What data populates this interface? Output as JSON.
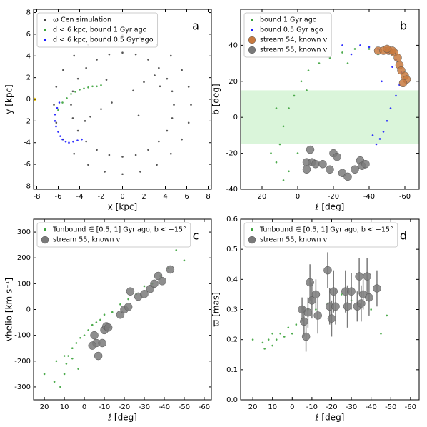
{
  "chart_data": [
    {
      "type": "scatter",
      "panel_label": "a",
      "xlabel": "x [kpc]",
      "ylabel": "y [kpc]",
      "xlim": [
        -8.3,
        8.3
      ],
      "ylim": [
        -8.3,
        8.3
      ],
      "xticks": [
        -8,
        -6,
        -4,
        -2,
        0,
        2,
        4,
        6,
        8
      ],
      "yticks": [
        -8,
        -6,
        -4,
        -2,
        0,
        2,
        4,
        6,
        8
      ],
      "legend": "upper left",
      "series": [
        {
          "name": "ω Cen simulation",
          "color": "#444444",
          "marker": "small",
          "x": [
            4.8,
            4.64,
            4.16,
            3.39,
            2.4,
            1.24,
            0,
            -1.24,
            -2.4,
            -3.39,
            -4.16,
            -4.64,
            -4.8,
            -4.64,
            -4.16,
            -3.39,
            -2.4,
            -1.24,
            0,
            1.24,
            2.4,
            3.39,
            4.16,
            4.64,
            6.4,
            6.18,
            5.54,
            4.52,
            3.2,
            1.66,
            0,
            -1.66,
            -3.2,
            -4.52,
            -5.54,
            -6.18,
            -6.4,
            -6.18,
            -5.54,
            -4.52,
            -3.2,
            -1.66,
            0,
            1.66,
            3.2,
            4.52,
            5.54,
            6.18,
            -3,
            -2,
            -1,
            1,
            2,
            3,
            -3.5,
            3.5,
            1.5,
            -1.5
          ],
          "y": [
            -0.5,
            0.74,
            1.9,
            2.89,
            3.66,
            4.14,
            4.3,
            4.14,
            3.66,
            2.89,
            1.9,
            0.74,
            -0.5,
            -1.74,
            -2.9,
            -3.89,
            -4.66,
            -5.14,
            -5.3,
            -5.14,
            -4.66,
            -3.89,
            -2.9,
            -1.74,
            -0.5,
            1.16,
            2.7,
            4.02,
            5.04,
            5.68,
            5.9,
            5.68,
            5.04,
            4.02,
            2.7,
            1.16,
            -0.5,
            -2.16,
            -3.7,
            -5.02,
            -6.04,
            -6.68,
            -6.9,
            -6.68,
            -6.04,
            -5.02,
            -3.7,
            -2.16,
            -1.6,
            -0.9,
            -0.3,
            0.8,
            1.6,
            2.2,
            -2.0,
            1.2,
            -1.5,
            1.8
          ]
        },
        {
          "name": "d < 6 kpc, bound 1 Gyr ago",
          "color": "#3aa23a",
          "marker": "small",
          "x": [
            -6.0,
            -5.6,
            -5.2,
            -4.8,
            -4.4,
            -4.0,
            -3.6,
            -3.2,
            -2.8,
            -2.4,
            -2.0
          ],
          "y": [
            -1.0,
            -0.3,
            0.1,
            0.5,
            0.7,
            0.9,
            1.0,
            1.1,
            1.2,
            1.2,
            1.3
          ]
        },
        {
          "name": "d < 6 kpc, bound 0.5 Gyr ago",
          "color": "#1a1aff",
          "marker": "small",
          "x": [
            -6.3,
            -6.3,
            -6.2,
            -6.0,
            -5.8,
            -5.6,
            -5.3,
            -5.0,
            -4.6,
            -4.2,
            -3.8,
            -6.1,
            -5.9
          ],
          "y": [
            -1.4,
            -2.0,
            -2.5,
            -3.0,
            -3.4,
            -3.7,
            -3.9,
            -4.0,
            -3.9,
            -3.8,
            -3.7,
            -0.8,
            -0.3
          ]
        },
        {
          "color": "#e8c000",
          "marker": "small",
          "x": [
            -8.2
          ],
          "y": [
            0
          ]
        }
      ]
    },
    {
      "type": "scatter",
      "panel_label": "b",
      "xlabel": "ℓ [deg]",
      "ylabel": "b [deg]",
      "xlim": [
        32,
        -68
      ],
      "ylim": [
        -40,
        60
      ],
      "xticks": [
        20,
        0,
        -20,
        -40,
        -60
      ],
      "yticks": [
        -40,
        -20,
        0,
        20,
        40
      ],
      "yband": [
        -15,
        15
      ],
      "band_color": "#daf5da",
      "legend": "upper left",
      "series": [
        {
          "name": "bound 1 Gyr ago",
          "color": "#3aa23a",
          "marker": "small",
          "x": [
            12,
            10,
            8,
            5,
            2,
            -2,
            -6,
            -12,
            -18,
            -25,
            -32,
            -40,
            5,
            15,
            -5,
            -28,
            -45,
            0,
            8,
            12
          ],
          "y": [
            -25,
            -15,
            -5,
            5,
            12,
            20,
            26,
            30,
            33,
            36,
            38,
            38,
            -30,
            -20,
            15,
            30,
            35,
            -20,
            -35,
            5
          ]
        },
        {
          "name": "bound 0.5 Gyr ago",
          "color": "#1a1aff",
          "marker": "small",
          "x": [
            -35,
            -40,
            -45,
            -50,
            -55,
            -58,
            -57,
            -55,
            -52,
            -50,
            -48,
            -46,
            -44,
            -60,
            -53,
            -42,
            -30,
            -25,
            -47
          ],
          "y": [
            40,
            39,
            38,
            36,
            32,
            25,
            18,
            12,
            5,
            -2,
            -8,
            -12,
            -15,
            20,
            28,
            -10,
            35,
            40,
            20
          ]
        },
        {
          "name": "stream 54, known v",
          "color": "#c87a40",
          "marker": "large",
          "x": [
            -45,
            -48,
            -51,
            -54,
            -56,
            -57,
            -58,
            -60,
            -61,
            -59,
            -53,
            -50
          ],
          "y": [
            37,
            37,
            37,
            36,
            33,
            29,
            26,
            23,
            21,
            19,
            37,
            38
          ]
        },
        {
          "name": "stream 55, known v",
          "color": "#7a7a7a",
          "marker": "large",
          "x": [
            -7,
            -5,
            -8,
            -10,
            -5,
            -20,
            -22,
            -18,
            -25,
            -28,
            -32,
            -35,
            -36,
            -38,
            -14
          ],
          "y": [
            -18,
            -25,
            -25,
            -26,
            -29,
            -20,
            -22,
            -29,
            -31,
            -33,
            -29,
            -24,
            -27,
            -26,
            -26
          ]
        }
      ]
    },
    {
      "type": "scatter",
      "panel_label": "c",
      "xlabel": "ℓ [deg]",
      "ylabel": "vhelio [km s⁻¹]",
      "xlim": [
        25.4,
        -63.6
      ],
      "ylim": [
        -350,
        350
      ],
      "xticks": [
        20,
        10,
        0,
        -10,
        -20,
        -30,
        -40,
        -50,
        -60
      ],
      "yticks": [
        -300,
        -200,
        -100,
        0,
        100,
        200,
        300
      ],
      "legend": "upper left",
      "series": [
        {
          "name": "Tunbound ∈ [0.5, 1] Gyr ago, b < −15°",
          "color": "#3aa23a",
          "marker": "small",
          "x": [
            20,
            15,
            12,
            10,
            9,
            8,
            6,
            4,
            2,
            0,
            -2,
            -4,
            -6,
            -8,
            -10,
            -14,
            -18,
            -22,
            -26,
            -30,
            -34,
            -38,
            -42,
            -46,
            -50,
            10,
            14,
            6,
            3,
            -12
          ],
          "y": [
            -250,
            -280,
            -300,
            -250,
            -210,
            -180,
            -150,
            -130,
            -110,
            -100,
            -80,
            -60,
            -50,
            -40,
            -20,
            -10,
            20,
            40,
            60,
            90,
            100,
            130,
            160,
            230,
            190,
            -180,
            -200,
            -190,
            -230,
            -70
          ]
        },
        {
          "name": "stream 55, known v",
          "color": "#7a7a7a",
          "marker": "large",
          "x": [
            -5,
            -6,
            -7,
            -9,
            -10,
            -11,
            -12,
            -18,
            -20,
            -22,
            -23,
            -27,
            -30,
            -33,
            -35,
            -37,
            -39,
            -43,
            -4
          ],
          "y": [
            -100,
            -130,
            -180,
            -130,
            -80,
            -65,
            -70,
            -20,
            0,
            10,
            70,
            50,
            60,
            80,
            100,
            130,
            110,
            155,
            -140
          ]
        }
      ]
    },
    {
      "type": "scatter",
      "panel_label": "d",
      "xlabel": "ℓ [deg]",
      "ylabel": "ϖ [mas]",
      "xlim": [
        26.2,
        -64.4
      ],
      "ylim": [
        0,
        0.6
      ],
      "xticks": [
        20,
        10,
        0,
        -10,
        -20,
        -30,
        -40,
        -50,
        -60
      ],
      "yticks": [
        {
          "value": 0,
          "label": "0.0"
        },
        0.1,
        0.2,
        0.3,
        0.4,
        0.5,
        0.6
      ],
      "legend": "upper left",
      "series": [
        {
          "name": "Tunbound ∈ [0.5, 1] Gyr ago, b < −15°",
          "color": "#3aa23a",
          "marker": "small",
          "x": [
            20,
            15,
            12,
            10,
            8,
            6,
            4,
            2,
            0,
            -2,
            -5,
            -8,
            -12,
            -18,
            -25,
            -30,
            -40,
            -45,
            -48,
            14,
            10
          ],
          "y": [
            0.2,
            0.19,
            0.2,
            0.18,
            0.2,
            0.22,
            0.21,
            0.24,
            0.22,
            0.25,
            0.27,
            0.3,
            0.3,
            0.32,
            0.35,
            0.33,
            0.3,
            0.22,
            0.28,
            0.17,
            0.22
          ]
        },
        {
          "name": "stream 55, known v",
          "color": "#7a7a7a",
          "marker": "large",
          "x": [
            -5,
            -6,
            -7,
            -8,
            -9,
            -10,
            -12,
            -13,
            -18,
            -19,
            -20,
            -21,
            -22,
            -27,
            -28,
            -30,
            -33,
            -34,
            -35,
            -36,
            -38,
            -39,
            -43
          ],
          "y": [
            0.3,
            0.26,
            0.21,
            0.29,
            0.39,
            0.33,
            0.35,
            0.28,
            0.43,
            0.31,
            0.27,
            0.36,
            0.31,
            0.36,
            0.31,
            0.36,
            0.31,
            0.41,
            0.32,
            0.35,
            0.41,
            0.34,
            0.37
          ],
          "errors": [
            0.04,
            0.05,
            0.05,
            0.05,
            0.06,
            0.06,
            0.05,
            0.06,
            0.06,
            0.06,
            0.06,
            0.07,
            0.06,
            0.07,
            0.07,
            0.06,
            0.05,
            0.06,
            0.06,
            0.05,
            0.06,
            0.06,
            0.06
          ]
        }
      ]
    }
  ]
}
